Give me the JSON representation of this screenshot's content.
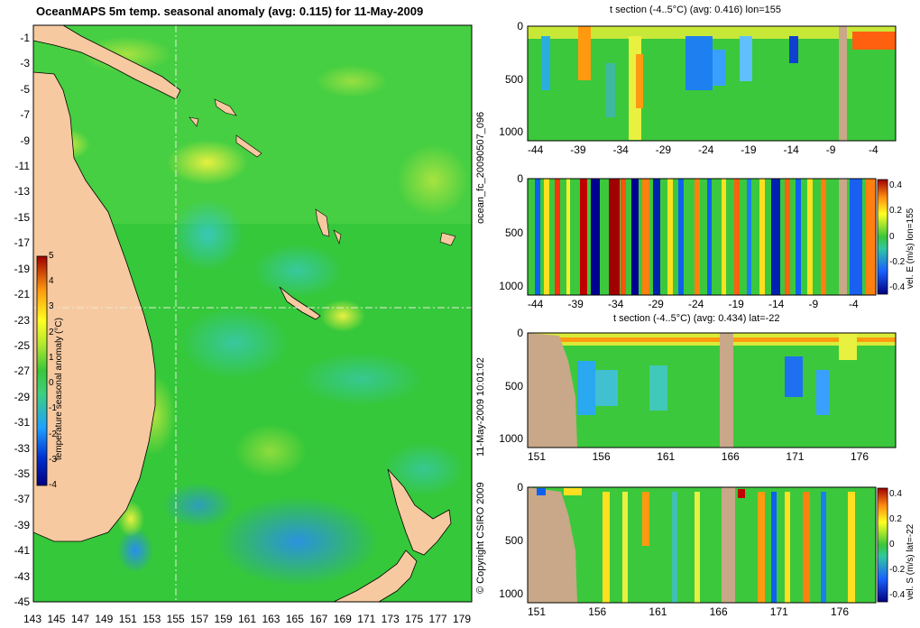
{
  "main_map": {
    "title": "OceanMAPS 5m temp. seasonal anomaly (avg: 0.115) for 11-May-2009",
    "lat_ticks": [
      "-1",
      "-3",
      "-5",
      "-7",
      "-9",
      "-11",
      "-13",
      "-15",
      "-17",
      "-19",
      "-21",
      "-23",
      "-25",
      "-27",
      "-29",
      "-31",
      "-33",
      "-35",
      "-37",
      "-39",
      "-41",
      "-43",
      "-45"
    ],
    "lon_ticks": [
      "143",
      "145",
      "147",
      "149",
      "151",
      "153",
      "155",
      "157",
      "159",
      "161",
      "163",
      "165",
      "167",
      "169",
      "171",
      "173",
      "175",
      "177",
      "179"
    ],
    "colorbar_label": "temperature seasonal anomaly (°C)",
    "colorbar_ticks": [
      "5",
      "4",
      "3",
      "2",
      "1",
      "0",
      "-1",
      "-2",
      "-3",
      "-4"
    ],
    "section_lat_line": "-22",
    "section_lon_line": "155",
    "colors": {
      "land": "#f7c9a0",
      "ocean_base": "#35c83a",
      "grid_line": "#d9e6d0"
    }
  },
  "side_labels": {
    "forecast_id": "ocean_fc_20090507_096",
    "date_time": "11-May-2009 10:01:02",
    "copyright": "© Copyright CSIRO 2009"
  },
  "panels": [
    {
      "id": "t-lon",
      "title": "t section (-4..5°C) (avg: 0.416) lon=155",
      "y_ticks": [
        "0",
        "500",
        "1000"
      ],
      "x_ticks": [
        "-44",
        "-39",
        "-34",
        "-29",
        "-24",
        "-19",
        "-14",
        "-9",
        "-4"
      ],
      "colorbar_label": "",
      "colorbar_ticks": []
    },
    {
      "id": "vel-e",
      "title": "",
      "y_ticks": [
        "0",
        "500",
        "1000"
      ],
      "x_ticks": [
        "-44",
        "-39",
        "-34",
        "-29",
        "-24",
        "-19",
        "-14",
        "-9",
        "-4"
      ],
      "colorbar_label": "vel. E (m/s) lon=155",
      "colorbar_ticks": [
        "0.4",
        "0.2",
        "0",
        "-0.2",
        "-0.4"
      ]
    },
    {
      "id": "t-lat",
      "title": "t section (-4..5°C) (avg: 0.434) lat=-22",
      "y_ticks": [
        "0",
        "500",
        "1000"
      ],
      "x_ticks": [
        "151",
        "156",
        "161",
        "166",
        "171",
        "176"
      ],
      "colorbar_label": "",
      "colorbar_ticks": []
    },
    {
      "id": "vel-s",
      "title": "",
      "y_ticks": [
        "0",
        "500",
        "1000"
      ],
      "x_ticks": [
        "151",
        "156",
        "161",
        "166",
        "171",
        "176"
      ],
      "colorbar_label": "vel. S (m/s) lat=-22",
      "colorbar_ticks": [
        "0.4",
        "0.2",
        "0",
        "-0.2",
        "-0.4"
      ]
    }
  ]
}
